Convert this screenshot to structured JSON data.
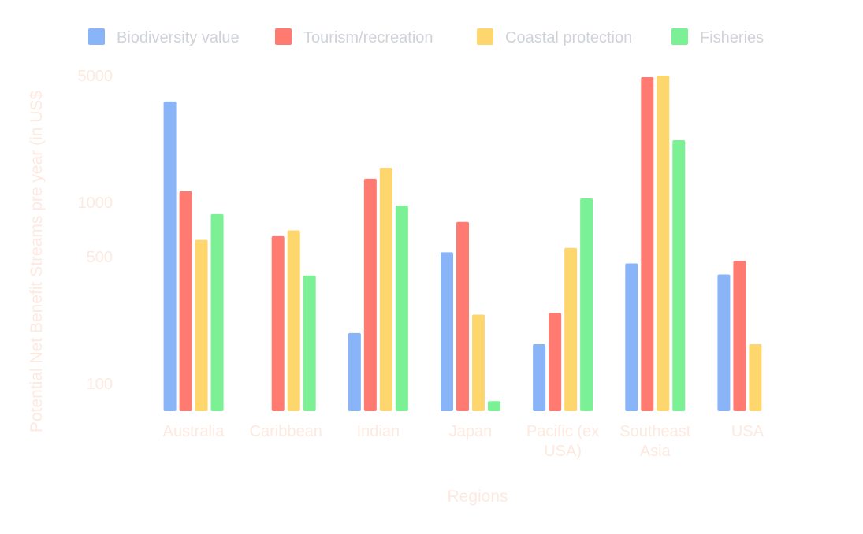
{
  "chart_data": {
    "type": "bar",
    "title": "",
    "xlabel": "Regions",
    "ylabel": "Potential Net Benefit Streams pre year (in US$",
    "y_scale": "log",
    "ylim": [
      60,
      5000
    ],
    "y_ticks": [
      {
        "value": 100,
        "label": "100"
      },
      {
        "value": 500,
        "label": "500"
      },
      {
        "value": 1000,
        "label": "1000"
      },
      {
        "value": 5000,
        "label": "5000"
      }
    ],
    "categories": [
      {
        "name": "Australia",
        "lines": [
          "Australia"
        ]
      },
      {
        "name": "Caribbean",
        "lines": [
          "Caribbean"
        ]
      },
      {
        "name": "Indian",
        "lines": [
          "Indian"
        ]
      },
      {
        "name": "Japan",
        "lines": [
          "Japan"
        ]
      },
      {
        "name": "Pacific (ex USA)",
        "lines": [
          "Pacific (ex",
          "USA)"
        ]
      },
      {
        "name": "Southeast Asia",
        "lines": [
          "Southeast",
          "Asia"
        ]
      },
      {
        "name": "USA",
        "lines": [
          "USA"
        ]
      }
    ],
    "series": [
      {
        "name": "Biodiversity value",
        "color": "#8ab4f8",
        "values": [
          3600,
          63,
          190,
          530,
          165,
          460,
          400
        ]
      },
      {
        "name": "Tourism/recreation",
        "color": "#ff7b72",
        "values": [
          1150,
          650,
          1350,
          780,
          245,
          4900,
          475
        ]
      },
      {
        "name": "Coastal protection",
        "color": "#fdd66e",
        "values": [
          620,
          700,
          1550,
          240,
          560,
          5000,
          165
        ]
      },
      {
        "name": "Fisheries",
        "color": "#7bf095",
        "values": [
          860,
          395,
          960,
          80,
          1050,
          2200,
          null
        ]
      }
    ],
    "legend_position": "top",
    "grid": false
  }
}
